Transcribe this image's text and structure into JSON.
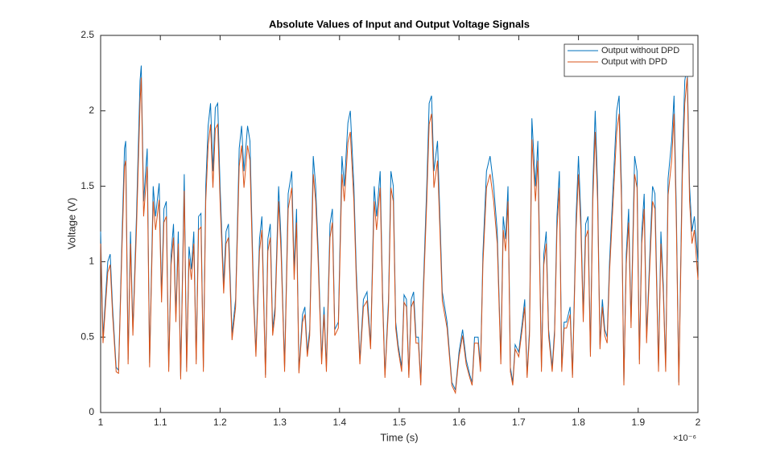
{
  "chart_data": {
    "type": "line",
    "title": "Absolute Values of Input and Output Voltage Signals",
    "xlabel": "Time (s)",
    "ylabel": "Voltage (V)",
    "x_exponent_label": "×10⁻⁶",
    "xlim": [
      1,
      2
    ],
    "xticks": [
      1,
      1.1,
      1.2,
      1.3,
      1.4,
      1.5,
      1.6,
      1.7,
      1.8,
      1.9,
      2
    ],
    "ylim": [
      0,
      2.5
    ],
    "yticks": [
      0,
      0.5,
      1,
      1.5,
      2,
      2.5
    ],
    "grid": false,
    "legend": "northeast",
    "x": [
      1.0,
      1.004,
      1.008,
      1.012,
      1.016,
      1.02,
      1.026,
      1.03,
      1.036,
      1.04,
      1.042,
      1.046,
      1.05,
      1.054,
      1.06,
      1.066,
      1.068,
      1.072,
      1.078,
      1.082,
      1.088,
      1.092,
      1.098,
      1.102,
      1.106,
      1.11,
      1.114,
      1.118,
      1.122,
      1.126,
      1.13,
      1.134,
      1.14,
      1.144,
      1.148,
      1.152,
      1.156,
      1.16,
      1.164,
      1.168,
      1.172,
      1.176,
      1.18,
      1.184,
      1.188,
      1.192,
      1.196,
      1.2,
      1.206,
      1.21,
      1.214,
      1.22,
      1.226,
      1.232,
      1.236,
      1.24,
      1.246,
      1.25,
      1.256,
      1.26,
      1.266,
      1.27,
      1.276,
      1.28,
      1.284,
      1.288,
      1.292,
      1.298,
      1.302,
      1.308,
      1.314,
      1.32,
      1.324,
      1.328,
      1.332,
      1.338,
      1.342,
      1.346,
      1.35,
      1.356,
      1.36,
      1.364,
      1.37,
      1.374,
      1.378,
      1.384,
      1.388,
      1.392,
      1.398,
      1.404,
      1.408,
      1.414,
      1.418,
      1.424,
      1.428,
      1.434,
      1.44,
      1.446,
      1.452,
      1.458,
      1.462,
      1.468,
      1.472,
      1.476,
      1.482,
      1.486,
      1.49,
      1.494,
      1.498,
      1.504,
      1.508,
      1.512,
      1.516,
      1.52,
      1.524,
      1.528,
      1.532,
      1.536,
      1.54,
      1.546,
      1.55,
      1.554,
      1.558,
      1.564,
      1.568,
      1.572,
      1.58,
      1.588,
      1.594,
      1.6,
      1.606,
      1.612,
      1.618,
      1.622,
      1.626,
      1.632,
      1.636,
      1.64,
      1.646,
      1.652,
      1.658,
      1.664,
      1.67,
      1.674,
      1.678,
      1.682,
      1.686,
      1.69,
      1.694,
      1.7,
      1.706,
      1.71,
      1.714,
      1.718,
      1.722,
      1.728,
      1.732,
      1.738,
      1.742,
      1.746,
      1.75,
      1.756,
      1.76,
      1.764,
      1.768,
      1.772,
      1.776,
      1.78,
      1.786,
      1.79,
      1.796,
      1.8,
      1.804,
      1.808,
      1.812,
      1.816,
      1.82,
      1.824,
      1.828,
      1.832,
      1.836,
      1.84,
      1.844,
      1.848,
      1.852,
      1.858,
      1.864,
      1.868,
      1.872,
      1.876,
      1.88,
      1.884,
      1.888,
      1.894,
      1.898,
      1.902,
      1.906,
      1.91,
      1.914,
      1.918,
      1.924,
      1.928,
      1.934,
      1.938,
      1.942,
      1.946,
      1.95,
      1.956,
      1.96,
      1.964,
      1.968,
      1.974,
      1.978,
      1.982,
      1.986,
      1.99,
      1.994,
      2.0
    ],
    "series": [
      {
        "name": "Output without DPD",
        "color": "#0072BD",
        "values": [
          1.2,
          0.5,
          0.75,
          1.0,
          1.05,
          0.7,
          0.3,
          0.28,
          1.2,
          1.75,
          1.8,
          0.35,
          1.2,
          0.55,
          1.3,
          2.2,
          2.3,
          1.4,
          1.75,
          0.33,
          1.5,
          1.3,
          1.52,
          0.78,
          1.35,
          1.4,
          0.3,
          1.05,
          1.25,
          0.65,
          1.2,
          0.24,
          1.58,
          0.3,
          1.1,
          0.95,
          1.2,
          0.35,
          1.3,
          1.32,
          0.3,
          1.5,
          1.9,
          2.05,
          1.6,
          2.02,
          2.05,
          1.5,
          0.85,
          1.2,
          1.25,
          0.52,
          0.75,
          1.75,
          1.9,
          1.6,
          1.9,
          1.8,
          0.8,
          0.4,
          1.15,
          1.3,
          0.25,
          1.15,
          1.25,
          0.55,
          0.7,
          1.5,
          1.15,
          0.3,
          1.45,
          1.6,
          0.95,
          1.35,
          0.28,
          0.65,
          0.7,
          0.4,
          0.55,
          1.7,
          1.5,
          1.1,
          0.35,
          0.7,
          0.3,
          1.25,
          1.35,
          0.55,
          0.6,
          1.7,
          1.5,
          1.92,
          2.0,
          1.5,
          0.95,
          0.35,
          0.75,
          0.8,
          0.45,
          1.5,
          1.3,
          1.6,
          0.8,
          0.25,
          0.75,
          1.6,
          1.5,
          0.6,
          0.45,
          0.3,
          0.78,
          0.75,
          0.25,
          0.75,
          0.8,
          0.5,
          0.5,
          0.2,
          0.8,
          1.5,
          2.05,
          2.1,
          1.6,
          1.8,
          1.3,
          0.8,
          0.6,
          0.2,
          0.15,
          0.4,
          0.55,
          0.35,
          0.25,
          0.2,
          0.5,
          0.5,
          0.3,
          1.05,
          1.6,
          1.7,
          1.5,
          1.2,
          0.35,
          1.3,
          1.15,
          1.5,
          0.3,
          0.2,
          0.45,
          0.4,
          0.6,
          0.75,
          0.25,
          0.55,
          1.95,
          1.5,
          1.8,
          0.3,
          1.05,
          1.2,
          0.55,
          0.3,
          0.55,
          1.3,
          1.6,
          0.3,
          0.6,
          0.6,
          0.7,
          0.25,
          1.3,
          1.7,
          1.3,
          0.65,
          1.25,
          1.3,
          0.4,
          1.5,
          2.0,
          1.5,
          0.45,
          0.75,
          0.55,
          0.5,
          1.0,
          1.5,
          2.0,
          2.1,
          1.5,
          0.2,
          1.05,
          1.35,
          0.6,
          1.7,
          1.6,
          0.35,
          1.2,
          1.45,
          0.5,
          0.9,
          1.5,
          1.45,
          0.3,
          1.2,
          0.85,
          0.3,
          1.55,
          1.8,
          2.1,
          1.3,
          0.2,
          1.7,
          2.2,
          2.3,
          1.5,
          1.2,
          1.3,
          1.0
        ]
      },
      {
        "name": "Output with DPD",
        "color": "#D95319",
        "values": [
          1.12,
          0.46,
          0.7,
          0.93,
          0.98,
          0.65,
          0.27,
          0.26,
          1.12,
          1.63,
          1.67,
          0.32,
          1.12,
          0.51,
          1.21,
          2.05,
          2.22,
          1.3,
          1.63,
          0.3,
          1.4,
          1.21,
          1.41,
          0.73,
          1.26,
          1.3,
          0.27,
          0.98,
          1.16,
          0.6,
          1.12,
          0.22,
          1.47,
          0.27,
          1.02,
          0.88,
          1.12,
          0.32,
          1.21,
          1.23,
          0.27,
          1.4,
          1.77,
          1.91,
          1.49,
          1.88,
          1.91,
          1.4,
          0.79,
          1.12,
          1.16,
          0.48,
          0.7,
          1.63,
          1.77,
          1.49,
          1.77,
          1.67,
          0.74,
          0.37,
          1.07,
          1.21,
          0.23,
          1.07,
          1.16,
          0.51,
          0.65,
          1.4,
          1.07,
          0.27,
          1.35,
          1.49,
          0.88,
          1.26,
          0.26,
          0.6,
          0.65,
          0.37,
          0.51,
          1.58,
          1.4,
          1.02,
          0.32,
          0.65,
          0.27,
          1.16,
          1.26,
          0.51,
          0.56,
          1.58,
          1.4,
          1.79,
          1.86,
          1.4,
          0.88,
          0.32,
          0.7,
          0.74,
          0.42,
          1.4,
          1.21,
          1.49,
          0.74,
          0.23,
          0.7,
          1.49,
          1.4,
          0.56,
          0.42,
          0.27,
          0.73,
          0.7,
          0.23,
          0.7,
          0.74,
          0.46,
          0.46,
          0.18,
          0.74,
          1.4,
          1.91,
          1.98,
          1.49,
          1.67,
          1.21,
          0.74,
          0.56,
          0.18,
          0.13,
          0.37,
          0.51,
          0.32,
          0.23,
          0.18,
          0.46,
          0.46,
          0.27,
          0.98,
          1.49,
          1.58,
          1.4,
          1.12,
          0.32,
          1.21,
          1.07,
          1.4,
          0.27,
          0.18,
          0.42,
          0.37,
          0.56,
          0.7,
          0.23,
          0.51,
          1.81,
          1.4,
          1.67,
          0.27,
          0.98,
          1.12,
          0.51,
          0.27,
          0.51,
          1.21,
          1.49,
          0.27,
          0.56,
          0.56,
          0.65,
          0.23,
          1.21,
          1.58,
          1.21,
          0.6,
          1.16,
          1.21,
          0.37,
          1.4,
          1.86,
          1.4,
          0.42,
          0.7,
          0.51,
          0.46,
          0.93,
          1.4,
          1.86,
          1.98,
          1.4,
          0.18,
          0.98,
          1.26,
          0.56,
          1.58,
          1.49,
          0.32,
          1.12,
          1.35,
          0.46,
          0.84,
          1.4,
          1.35,
          0.27,
          1.12,
          0.79,
          0.27,
          1.44,
          1.67,
          1.98,
          1.21,
          0.18,
          1.58,
          2.05,
          2.22,
          1.4,
          1.12,
          1.21,
          0.88
        ]
      }
    ]
  }
}
